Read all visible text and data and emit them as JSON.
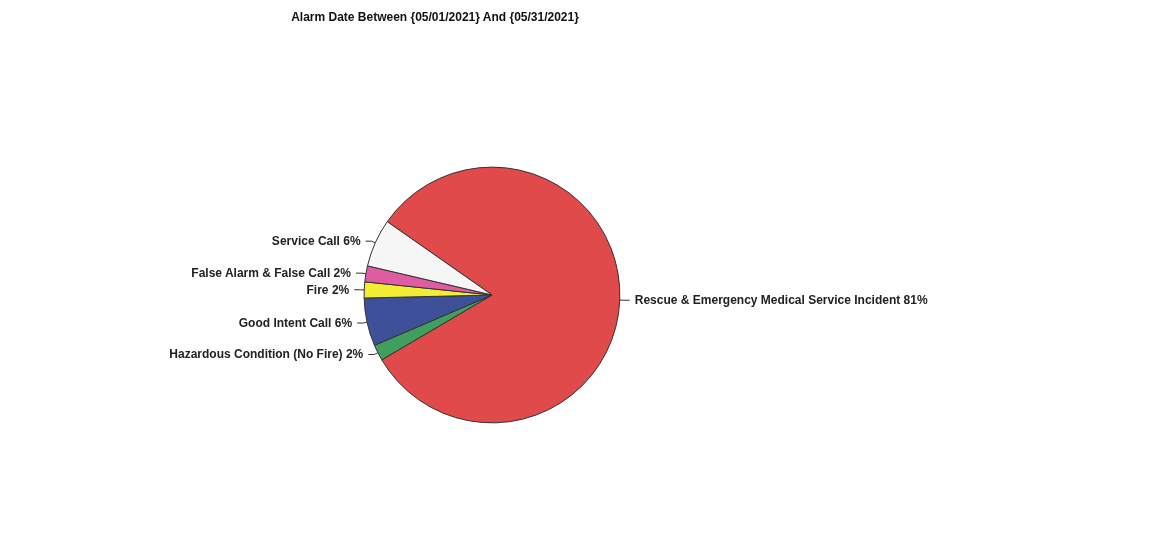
{
  "chart_data": {
    "type": "pie",
    "title": "Alarm Date Between {05/01/2021} And {05/31/2021}",
    "categories": [
      "Rescue & Emergency Medical Service Incident",
      "Hazardous Condition (No Fire)",
      "Good Intent Call",
      "Fire",
      "False Alarm & False Call",
      "Service Call"
    ],
    "values": [
      81,
      2,
      6,
      2,
      2,
      6
    ],
    "value_labels": [
      "81%",
      "2%",
      "6%",
      "2%",
      "2%",
      "6%"
    ],
    "colors": [
      "#e04a4a",
      "#3f9f5c",
      "#3e509a",
      "#f2ee34",
      "#e05ca2",
      "#f6f6f6"
    ],
    "legend": false
  }
}
